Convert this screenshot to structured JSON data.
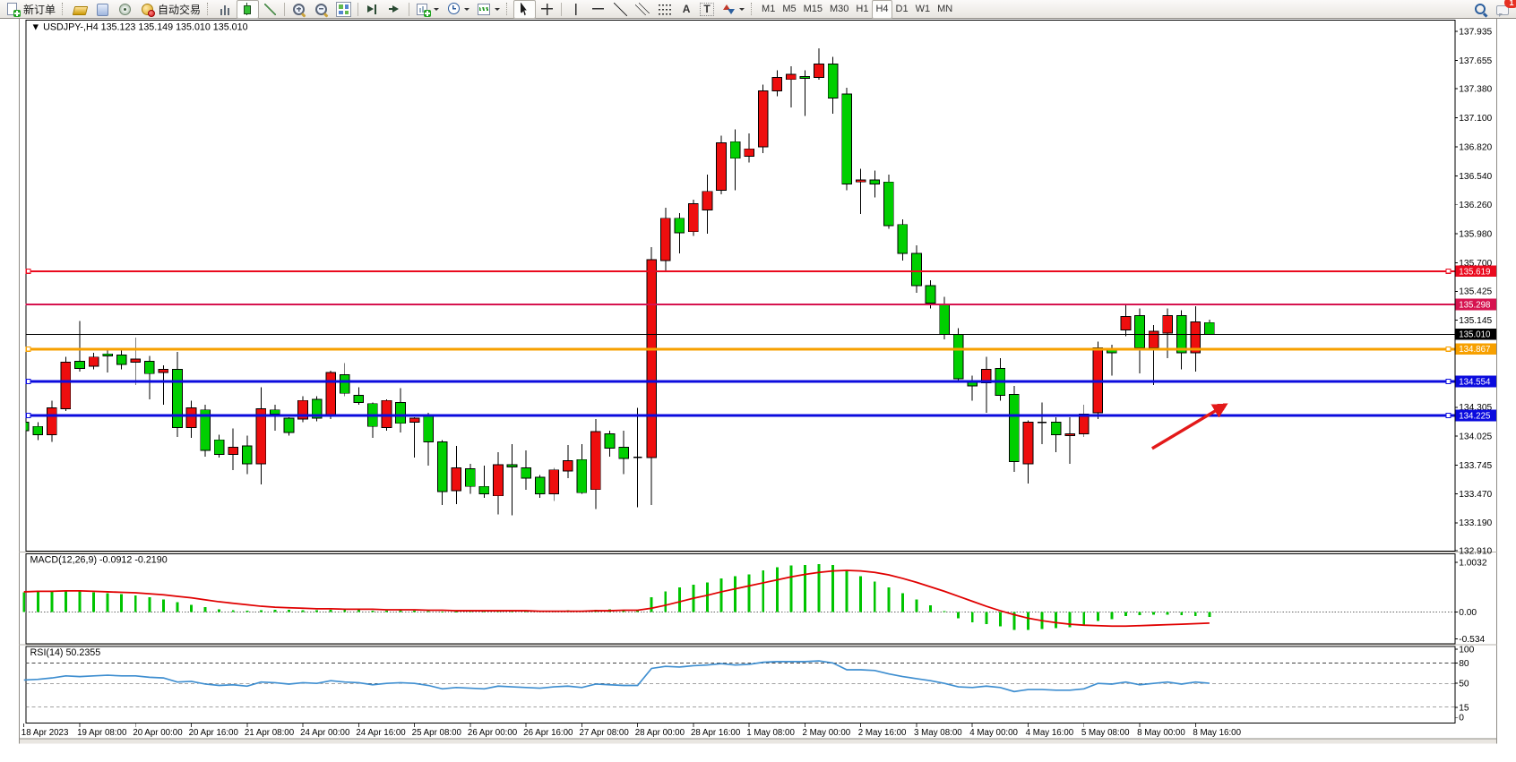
{
  "toolbar": {
    "new_order_label": "新订单",
    "autotrade_label": "自动交易",
    "text_tool_glyph": "A",
    "label_tool_glyph": "T",
    "timeframes": [
      "M1",
      "M5",
      "M15",
      "M30",
      "H1",
      "H4",
      "D1",
      "W1",
      "MN"
    ],
    "active_timeframe": "H4",
    "notification_count": "1"
  },
  "chart_data": {
    "type": "candlestick",
    "title_marker": "▼",
    "symbol_period": "USDJPY-,H4",
    "ohlc_display": "135.123 135.149 135.010 135.010",
    "colors": {
      "bull": "#ee0e0e",
      "bear": "#00cf00",
      "doji": "#000000",
      "wick": "#000000",
      "macd_hist": "#00c400",
      "macd_signal": "#e00000",
      "rsi_line": "#3e8ed0",
      "arrow": "#e31919"
    },
    "price_axis_ticks": [
      137.935,
      137.655,
      137.38,
      137.1,
      136.82,
      136.54,
      136.26,
      135.98,
      135.7,
      135.425,
      135.145,
      134.305,
      134.025,
      133.745,
      133.47,
      133.19,
      132.91
    ],
    "hlines": [
      {
        "label": "135.619",
        "price": 135.619,
        "color": "#ea0a1e",
        "width": 2,
        "handles": true
      },
      {
        "label": "135.298",
        "price": 135.298,
        "color": "#d6134f",
        "width": 2.5,
        "handles": false
      },
      {
        "label": "135.010",
        "price": 135.01,
        "color": "#000000",
        "width": 1,
        "handles": false
      },
      {
        "label": "134.867",
        "price": 134.867,
        "color": "#f7a000",
        "width": 3,
        "handles": true
      },
      {
        "label": "134.554",
        "price": 134.554,
        "color": "#0b0bde",
        "width": 3,
        "handles": true
      },
      {
        "label": "134.225",
        "price": 134.225,
        "color": "#0b0bde",
        "width": 3,
        "handles": true
      }
    ],
    "time_labels": [
      "18 Apr 2023",
      "19 Apr 08:00",
      "20 Apr 00:00",
      "20 Apr 16:00",
      "21 Apr 08:00",
      "24 Apr 00:00",
      "24 Apr 16:00",
      "25 Apr 08:00",
      "26 Apr 00:00",
      "26 Apr 16:00",
      "27 Apr 08:00",
      "28 Apr 00:00",
      "28 Apr 16:00",
      "1 May 08:00",
      "2 May 00:00",
      "2 May 16:00",
      "3 May 08:00",
      "4 May 00:00",
      "4 May 16:00",
      "5 May 08:00",
      "8 May 00:00",
      "8 May 16:00"
    ],
    "candles": [
      [
        134.16,
        134.2,
        134.04,
        134.08
      ],
      [
        134.12,
        134.16,
        133.99,
        134.04
      ],
      [
        134.04,
        134.37,
        133.97,
        134.3
      ],
      [
        134.29,
        134.79,
        134.27,
        134.74
      ],
      [
        134.75,
        135.14,
        134.65,
        134.68
      ],
      [
        134.7,
        134.83,
        134.67,
        134.79
      ],
      [
        134.82,
        134.88,
        134.64,
        134.8
      ],
      [
        134.81,
        134.86,
        134.67,
        134.72
      ],
      [
        134.74,
        134.98,
        134.52,
        134.77
      ],
      [
        134.75,
        134.8,
        134.38,
        134.63
      ],
      [
        134.64,
        134.71,
        134.33,
        134.67
      ],
      [
        134.67,
        134.84,
        134.02,
        134.11
      ],
      [
        134.11,
        134.37,
        134.01,
        134.3
      ],
      [
        134.28,
        134.33,
        133.83,
        133.89
      ],
      [
        133.99,
        134.04,
        133.82,
        133.85
      ],
      [
        133.85,
        134.1,
        133.7,
        133.92
      ],
      [
        133.93,
        134.03,
        133.66,
        133.76
      ],
      [
        133.76,
        134.5,
        133.56,
        134.29
      ],
      [
        134.28,
        134.33,
        134.08,
        134.24
      ],
      [
        134.2,
        134.21,
        134.03,
        134.06
      ],
      [
        134.19,
        134.41,
        134.16,
        134.37
      ],
      [
        134.38,
        134.41,
        134.17,
        134.2
      ],
      [
        134.23,
        134.66,
        134.19,
        134.64
      ],
      [
        134.62,
        134.73,
        134.41,
        134.44
      ],
      [
        134.42,
        134.5,
        134.33,
        134.35
      ],
      [
        134.34,
        134.35,
        134.01,
        134.12
      ],
      [
        134.11,
        134.38,
        134.08,
        134.37
      ],
      [
        134.35,
        134.49,
        134.06,
        134.15
      ],
      [
        134.16,
        134.21,
        133.82,
        134.2
      ],
      [
        134.22,
        134.25,
        133.74,
        133.97
      ],
      [
        133.97,
        133.99,
        133.36,
        133.49
      ],
      [
        133.5,
        133.93,
        133.37,
        133.72
      ],
      [
        133.71,
        133.76,
        133.47,
        133.54
      ],
      [
        133.54,
        133.74,
        133.43,
        133.47
      ],
      [
        133.45,
        133.87,
        133.27,
        133.75
      ],
      [
        133.75,
        133.95,
        133.26,
        133.73
      ],
      [
        133.72,
        133.89,
        133.51,
        133.62
      ],
      [
        133.63,
        133.65,
        133.43,
        133.47
      ],
      [
        133.47,
        133.72,
        133.4,
        133.7
      ],
      [
        133.69,
        133.94,
        133.62,
        133.79
      ],
      [
        133.8,
        133.95,
        133.47,
        133.48
      ],
      [
        133.51,
        134.19,
        133.32,
        134.07
      ],
      [
        134.05,
        134.08,
        133.83,
        133.91
      ],
      [
        133.92,
        134.08,
        133.66,
        133.81
      ],
      [
        133.83,
        134.3,
        133.34,
        133.82
      ],
      [
        133.82,
        135.85,
        133.36,
        135.73
      ],
      [
        135.72,
        136.23,
        135.62,
        136.13
      ],
      [
        136.13,
        136.18,
        135.79,
        135.99
      ],
      [
        136.0,
        136.31,
        135.96,
        136.27
      ],
      [
        136.21,
        136.55,
        135.98,
        136.39
      ],
      [
        136.4,
        136.93,
        136.36,
        136.86
      ],
      [
        136.87,
        136.99,
        136.4,
        136.71
      ],
      [
        136.73,
        136.95,
        136.67,
        136.8
      ],
      [
        136.82,
        137.42,
        136.76,
        137.36
      ],
      [
        137.36,
        137.56,
        137.31,
        137.49
      ],
      [
        137.47,
        137.6,
        137.2,
        137.52
      ],
      [
        137.5,
        137.56,
        137.12,
        137.48
      ],
      [
        137.49,
        137.77,
        137.47,
        137.62
      ],
      [
        137.62,
        137.69,
        137.14,
        137.29
      ],
      [
        137.33,
        137.39,
        136.4,
        136.46
      ],
      [
        136.48,
        136.61,
        136.17,
        136.5
      ],
      [
        136.5,
        136.59,
        136.33,
        136.46
      ],
      [
        136.48,
        136.55,
        136.03,
        136.06
      ],
      [
        136.07,
        136.12,
        135.72,
        135.79
      ],
      [
        135.79,
        135.87,
        135.41,
        135.48
      ],
      [
        135.48,
        135.53,
        135.26,
        135.31
      ],
      [
        135.3,
        135.37,
        134.96,
        135.01
      ],
      [
        135.01,
        135.07,
        134.54,
        134.58
      ],
      [
        134.56,
        134.61,
        134.37,
        134.51
      ],
      [
        134.54,
        134.79,
        134.25,
        134.67
      ],
      [
        134.68,
        134.78,
        134.37,
        134.42
      ],
      [
        134.43,
        134.51,
        133.68,
        133.78
      ],
      [
        133.76,
        134.18,
        133.57,
        134.16
      ],
      [
        134.17,
        134.35,
        133.95,
        134.16
      ],
      [
        134.16,
        134.21,
        133.87,
        134.04
      ],
      [
        134.03,
        134.21,
        133.76,
        134.05
      ],
      [
        134.05,
        134.33,
        134.02,
        134.24
      ],
      [
        134.25,
        134.94,
        134.19,
        134.88
      ],
      [
        134.87,
        134.91,
        134.61,
        134.83
      ],
      [
        135.05,
        135.3,
        134.99,
        135.18
      ],
      [
        135.19,
        135.26,
        134.63,
        134.88
      ],
      [
        134.88,
        135.1,
        134.52,
        135.04
      ],
      [
        135.02,
        135.26,
        134.78,
        135.19
      ],
      [
        135.19,
        135.24,
        134.67,
        134.83
      ],
      [
        134.83,
        135.28,
        134.65,
        135.13
      ],
      [
        135.123,
        135.149,
        135.01,
        135.01
      ]
    ],
    "macd": {
      "name": "MACD(12,26,9)",
      "values_text": "-0.0912 -0.2190",
      "axis_labels": [
        "1.0032",
        "0.00",
        "-0.534"
      ],
      "histogram": [
        0.4,
        0.42,
        0.43,
        0.44,
        0.42,
        0.4,
        0.38,
        0.36,
        0.34,
        0.3,
        0.26,
        0.2,
        0.15,
        0.1,
        0.06,
        0.04,
        0.03,
        0.04,
        0.05,
        0.05,
        0.04,
        0.04,
        0.05,
        0.06,
        0.05,
        0.03,
        0.03,
        0.04,
        0.03,
        0.02,
        0.01,
        0.01,
        0.02,
        0.02,
        0.03,
        0.03,
        0.03,
        0.02,
        0.03,
        0.04,
        0.02,
        0.05,
        0.06,
        0.05,
        0.04,
        0.3,
        0.42,
        0.5,
        0.55,
        0.6,
        0.68,
        0.72,
        0.76,
        0.84,
        0.9,
        0.94,
        0.95,
        0.97,
        0.95,
        0.82,
        0.72,
        0.62,
        0.5,
        0.38,
        0.26,
        0.14,
        0.02,
        -0.12,
        -0.2,
        -0.24,
        -0.28,
        -0.36,
        -0.36,
        -0.34,
        -0.32,
        -0.3,
        -0.26,
        -0.18,
        -0.14,
        -0.08,
        -0.06,
        -0.05,
        -0.05,
        -0.06,
        -0.08,
        -0.0912
      ],
      "signal": [
        0.41,
        0.42,
        0.42,
        0.43,
        0.43,
        0.42,
        0.41,
        0.4,
        0.39,
        0.37,
        0.35,
        0.32,
        0.29,
        0.25,
        0.21,
        0.18,
        0.15,
        0.12,
        0.1,
        0.09,
        0.08,
        0.07,
        0.07,
        0.06,
        0.06,
        0.06,
        0.05,
        0.05,
        0.05,
        0.04,
        0.04,
        0.03,
        0.03,
        0.03,
        0.03,
        0.03,
        0.03,
        0.02,
        0.02,
        0.02,
        0.02,
        0.03,
        0.03,
        0.04,
        0.04,
        0.08,
        0.14,
        0.21,
        0.28,
        0.34,
        0.41,
        0.47,
        0.53,
        0.59,
        0.65,
        0.71,
        0.76,
        0.8,
        0.83,
        0.84,
        0.83,
        0.8,
        0.75,
        0.68,
        0.6,
        0.51,
        0.42,
        0.32,
        0.22,
        0.12,
        0.03,
        -0.05,
        -0.12,
        -0.17,
        -0.21,
        -0.24,
        -0.26,
        -0.27,
        -0.28,
        -0.28,
        -0.27,
        -0.26,
        -0.25,
        -0.24,
        -0.23,
        -0.219
      ]
    },
    "rsi": {
      "name": "RSI(14)",
      "value_text": "50.2355",
      "axis_labels": [
        "100",
        "80",
        "50",
        "15",
        "0"
      ],
      "levels": [
        80,
        50,
        15
      ],
      "values": [
        55,
        56,
        58,
        61,
        60,
        61,
        62,
        61,
        61,
        59,
        58,
        52,
        53,
        49,
        47,
        48,
        46,
        52,
        51,
        49,
        51,
        50,
        54,
        52,
        51,
        48,
        50,
        51,
        50,
        47,
        42,
        44,
        43,
        42,
        46,
        45,
        44,
        43,
        45,
        46,
        44,
        49,
        48,
        47,
        47,
        72,
        75,
        74,
        76,
        77,
        79,
        77,
        78,
        81,
        82,
        82,
        82,
        83,
        80,
        70,
        70,
        69,
        64,
        60,
        57,
        54,
        50,
        45,
        44,
        46,
        44,
        38,
        41,
        41,
        40,
        40,
        42,
        50,
        49,
        52,
        48,
        50,
        52,
        49,
        52,
        50.24
      ]
    }
  }
}
